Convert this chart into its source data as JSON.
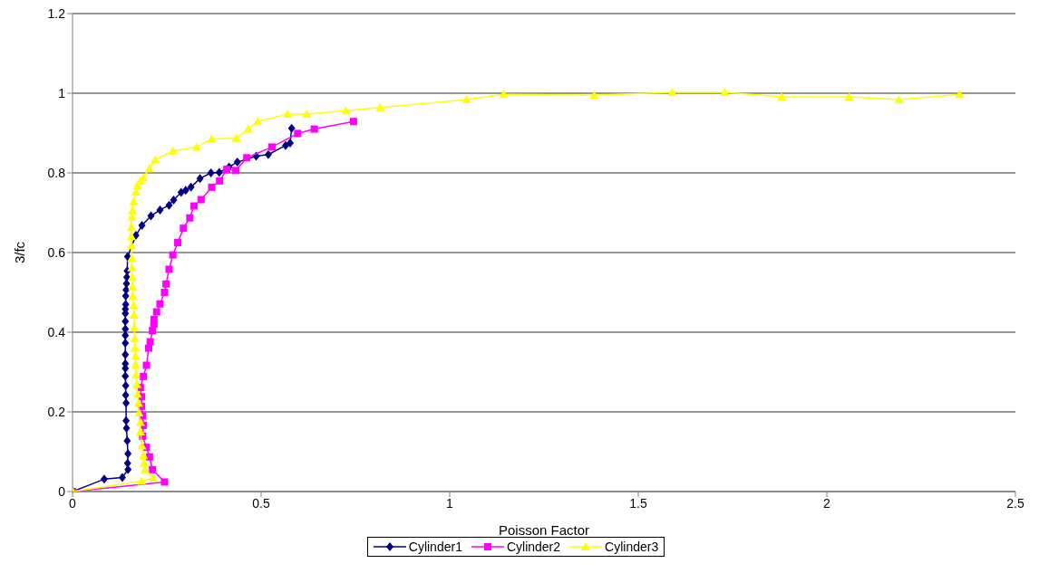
{
  "chart_data": {
    "type": "line",
    "xlabel": "Poisson Factor",
    "ylabel": "3/fc",
    "xlim": [
      0,
      2.5
    ],
    "xticks": [
      0,
      0.5,
      1,
      1.5,
      2,
      2.5
    ],
    "ylim": [
      0,
      1.2
    ],
    "yticks": [
      0,
      0.2,
      0.4,
      0.6,
      0.8,
      1,
      1.2
    ],
    "grid": "y",
    "legend": "bottom",
    "line_style": "solid",
    "series": [
      {
        "name": "Cylinder1",
        "color": "#000080",
        "marker": "diamond",
        "x": [
          0,
          0.084,
          0.132,
          0.147,
          0.146,
          0.147,
          0.145,
          0.143,
          0.142,
          0.142,
          0.141,
          0.141,
          0.14,
          0.14,
          0.14,
          0.14,
          0.14,
          0.14,
          0.14,
          0.14,
          0.14,
          0.14,
          0.141,
          0.141,
          0.142,
          0.143,
          0.144,
          0.145,
          0.146,
          0.168,
          0.184,
          0.208,
          0.232,
          0.256,
          0.268,
          0.288,
          0.3,
          0.314,
          0.338,
          0.367,
          0.389,
          0.415,
          0.437,
          0.487,
          0.519,
          0.565,
          0.577,
          0.581
        ],
        "values": [
          0,
          0.031,
          0.035,
          0.055,
          0.071,
          0.095,
          0.127,
          0.159,
          0.178,
          0.222,
          0.242,
          0.266,
          0.29,
          0.309,
          0.321,
          0.344,
          0.373,
          0.392,
          0.408,
          0.427,
          0.447,
          0.458,
          0.47,
          0.491,
          0.506,
          0.522,
          0.538,
          0.554,
          0.59,
          0.643,
          0.668,
          0.692,
          0.707,
          0.719,
          0.732,
          0.751,
          0.756,
          0.764,
          0.786,
          0.8,
          0.801,
          0.815,
          0.827,
          0.842,
          0.846,
          0.869,
          0.875,
          0.912
        ]
      },
      {
        "name": "Cylinder2",
        "color": "#ff00ff",
        "marker": "square",
        "x": [
          0,
          0.244,
          0.212,
          0.204,
          0.196,
          0.186,
          0.188,
          0.186,
          0.183,
          0.183,
          0.18,
          0.188,
          0.196,
          0.202,
          0.206,
          0.212,
          0.216,
          0.216,
          0.223,
          0.232,
          0.244,
          0.248,
          0.256,
          0.266,
          0.279,
          0.294,
          0.311,
          0.322,
          0.341,
          0.369,
          0.39,
          0.409,
          0.433,
          0.462,
          0.529,
          0.597,
          0.641,
          0.745
        ],
        "values": [
          0,
          0.024,
          0.055,
          0.087,
          0.111,
          0.139,
          0.166,
          0.19,
          0.214,
          0.238,
          0.261,
          0.289,
          0.317,
          0.36,
          0.376,
          0.404,
          0.42,
          0.432,
          0.451,
          0.471,
          0.5,
          0.521,
          0.558,
          0.594,
          0.625,
          0.661,
          0.687,
          0.717,
          0.733,
          0.764,
          0.78,
          0.809,
          0.806,
          0.838,
          0.865,
          0.899,
          0.91,
          0.929
        ]
      },
      {
        "name": "Cylinder3",
        "color": "#ffff00",
        "marker": "triangle",
        "x": [
          0,
          0.183,
          0.214,
          0.192,
          0.19,
          0.188,
          0.184,
          0.18,
          0.18,
          0.176,
          0.175,
          0.172,
          0.171,
          0.168,
          0.167,
          0.167,
          0.166,
          0.165,
          0.164,
          0.163,
          0.162,
          0.16,
          0.159,
          0.158,
          0.157,
          0.157,
          0.156,
          0.156,
          0.156,
          0.157,
          0.159,
          0.162,
          0.168,
          0.172,
          0.18,
          0.188,
          0.204,
          0.219,
          0.266,
          0.329,
          0.369,
          0.434,
          0.466,
          0.491,
          0.57,
          0.621,
          0.725,
          0.816,
          1.045,
          1.143,
          1.383,
          1.59,
          1.729,
          1.88,
          2.059,
          2.191,
          2.352
        ],
        "values": [
          0,
          0.026,
          0.034,
          0.055,
          0.071,
          0.091,
          0.115,
          0.15,
          0.174,
          0.198,
          0.222,
          0.245,
          0.269,
          0.293,
          0.317,
          0.34,
          0.36,
          0.384,
          0.412,
          0.443,
          0.467,
          0.491,
          0.515,
          0.538,
          0.562,
          0.586,
          0.618,
          0.641,
          0.665,
          0.689,
          0.705,
          0.728,
          0.752,
          0.768,
          0.78,
          0.788,
          0.811,
          0.833,
          0.855,
          0.865,
          0.885,
          0.887,
          0.91,
          0.929,
          0.948,
          0.948,
          0.956,
          0.964,
          0.984,
          0.997,
          0.995,
          1.002,
          1.002,
          0.991,
          0.991,
          0.984,
          0.997
        ]
      }
    ]
  }
}
